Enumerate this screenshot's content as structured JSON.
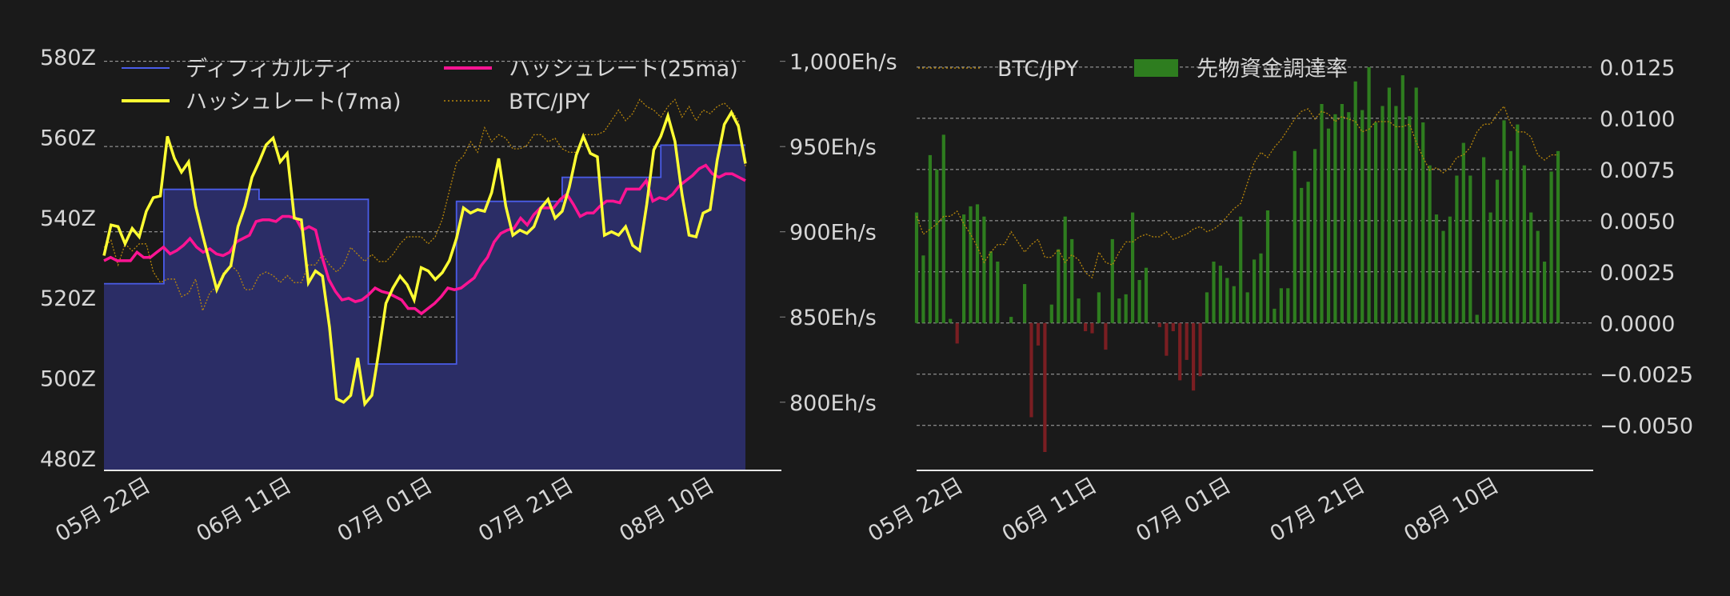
{
  "colors": {
    "background": "#1a1a1a",
    "text": "#d6d6d6",
    "grid": "#cfcfcf",
    "difficulty_line": "#4a5ce8",
    "difficulty_fill": "#2b2d66",
    "hash7": "#ffff33",
    "hash25": "#ff1493",
    "btc": "#b8860b",
    "funding_pos": "#2e7d1f",
    "funding_neg": "#7a1e22"
  },
  "chart_data": [
    {
      "type": "line",
      "x_tick_labels": [
        "05月 22日",
        "06月 11日",
        "07月 01日",
        "07月 21日",
        "08月 10日"
      ],
      "x_tick_days": [
        0,
        20,
        40,
        60,
        80
      ],
      "x_range_days": [
        0,
        91
      ],
      "y_left_ticks": [
        "480Z",
        "500Z",
        "520Z",
        "540Z",
        "560Z",
        "580Z"
      ],
      "y_left_tick_values": [
        480,
        500,
        520,
        540,
        560,
        580
      ],
      "y_left_range": [
        477,
        581
      ],
      "y_right_ticks": [
        "800Eh/s",
        "850Eh/s",
        "900Eh/s",
        "950Eh/s",
        "1,000Eh/s"
      ],
      "y_right_tick_values": [
        800,
        850,
        900,
        950,
        1000
      ],
      "y_right_range": [
        760,
        1005
      ],
      "btc_range": [
        0,
        1
      ],
      "legend": [
        "ディフィカルティ",
        "ハッシュレート(25ma)",
        "ハッシュレート(7ma)",
        "BTC/JPY"
      ],
      "difficulty_steps": [
        {
          "from": 0,
          "to": 8.5,
          "value": 523.5
        },
        {
          "from": 8.5,
          "to": 22,
          "value": 547
        },
        {
          "from": 22,
          "to": 37.5,
          "value": 544.5
        },
        {
          "from": 37.5,
          "to": 50,
          "value": 503.5
        },
        {
          "from": 50,
          "to": 65,
          "value": 544
        },
        {
          "from": 65,
          "to": 79,
          "value": 550
        },
        {
          "from": 79,
          "to": 91,
          "value": 558
        }
      ],
      "hashrate_7ma": [
        886,
        904,
        903,
        893,
        902,
        897,
        912,
        920,
        921,
        956,
        943,
        935,
        941,
        915,
        898,
        882,
        866,
        875,
        880,
        903,
        915,
        932,
        941,
        951,
        955,
        941,
        946,
        908,
        907,
        870,
        877,
        874,
        844,
        802,
        800,
        804,
        826,
        799,
        804,
        830,
        858,
        867,
        874,
        869,
        860,
        879,
        877,
        872,
        876,
        883,
        896,
        914,
        911,
        913,
        912,
        923,
        943,
        915,
        898,
        901,
        899,
        903,
        914,
        919,
        908,
        912,
        926,
        945,
        956,
        946,
        944,
        898,
        900,
        898,
        903,
        892,
        889,
        916,
        948,
        956,
        968,
        953,
        922,
        898,
        897,
        911,
        913,
        942,
        963,
        970,
        962,
        940
      ],
      "hashrate_25ma": [
        883,
        885,
        883,
        883,
        883,
        888,
        885,
        885,
        888,
        891,
        887,
        889,
        892,
        896,
        891,
        888,
        890,
        887,
        886,
        888,
        894,
        896,
        898,
        906,
        907,
        907,
        906,
        909,
        909,
        908,
        901,
        903,
        901,
        885,
        872,
        865,
        860,
        861,
        859,
        860,
        863,
        867,
        865,
        864,
        862,
        860,
        855,
        855,
        852,
        855,
        858,
        862,
        867,
        866,
        867,
        870,
        873,
        880,
        885,
        894,
        899,
        901,
        902,
        908,
        904,
        910,
        914,
        914,
        914,
        919,
        922,
        916,
        909,
        911,
        911,
        915,
        918,
        918,
        917,
        925,
        925,
        925,
        930,
        918,
        920,
        919,
        922,
        927,
        930,
        933,
        937,
        939,
        934,
        932,
        934,
        934,
        932,
        930
      ],
      "btc_jpy": [
        0.57,
        0.59,
        0.52,
        0.58,
        0.56,
        0.58,
        0.58,
        0.5,
        0.47,
        0.48,
        0.48,
        0.43,
        0.44,
        0.48,
        0.39,
        0.44,
        0.46,
        0.5,
        0.52,
        0.5,
        0.45,
        0.45,
        0.49,
        0.5,
        0.49,
        0.47,
        0.49,
        0.47,
        0.47,
        0.52,
        0.52,
        0.55,
        0.52,
        0.5,
        0.52,
        0.57,
        0.55,
        0.53,
        0.55,
        0.53,
        0.53,
        0.55,
        0.58,
        0.6,
        0.6,
        0.6,
        0.58,
        0.6,
        0.65,
        0.73,
        0.81,
        0.83,
        0.87,
        0.84,
        0.91,
        0.87,
        0.89,
        0.88,
        0.85,
        0.85,
        0.86,
        0.89,
        0.89,
        0.87,
        0.88,
        0.85,
        0.84,
        0.84,
        0.89,
        0.89,
        0.89,
        0.9,
        0.93,
        0.96,
        0.93,
        0.95,
        0.99,
        0.97,
        0.96,
        0.94,
        0.97,
        0.99,
        0.94,
        0.97,
        0.93,
        0.96,
        0.95,
        0.97,
        0.98,
        0.96,
        0.93,
        0.8
      ]
    },
    {
      "type": "bar",
      "x_tick_labels": [
        "05月 22日",
        "06月 11日",
        "07月 01日",
        "07月 21日",
        "08月 10日"
      ],
      "x_tick_days": [
        0,
        20,
        40,
        60,
        80
      ],
      "x_range_days": [
        0,
        96
      ],
      "y_ticks": [
        "0.0125",
        "0.0100",
        "0.0075",
        "0.0050",
        "0.0025",
        "0.0000",
        "−0.0025",
        "−0.0050"
      ],
      "y_tick_values": [
        0.0125,
        0.01,
        0.0075,
        0.005,
        0.0025,
        0.0,
        -0.0025,
        -0.005
      ],
      "y_range": [
        -0.0072,
        0.0132
      ],
      "btc_range": [
        0,
        1
      ],
      "legend": [
        "BTC/JPY",
        "先物資金調達率"
      ],
      "funding_rate": [
        0.0054,
        0.0033,
        0.0082,
        0.0075,
        0.0092,
        0.0002,
        -0.001,
        0.0053,
        0.0057,
        0.0058,
        0.0052,
        0.0035,
        0.003,
        0.0,
        0.0003,
        0.0,
        0.0019,
        -0.0046,
        -0.0011,
        -0.0063,
        0.0009,
        0.0036,
        0.0052,
        0.0041,
        0.0012,
        -0.0004,
        -0.0005,
        0.0015,
        -0.0013,
        0.0041,
        0.0012,
        0.0014,
        0.0054,
        0.0021,
        0.0027,
        0.0,
        -0.0002,
        -0.0016,
        -0.0004,
        -0.0028,
        -0.0018,
        -0.0033,
        -0.0026,
        0.0015,
        0.003,
        0.0028,
        0.0022,
        0.0018,
        0.0052,
        0.0015,
        0.0031,
        0.0034,
        0.0055,
        0.0007,
        0.0017,
        0.0017,
        0.0084,
        0.0066,
        0.0069,
        0.0085,
        0.0107,
        0.0095,
        0.0102,
        0.0107,
        0.0103,
        0.0118,
        0.0104,
        0.0125,
        0.0098,
        0.0106,
        0.0115,
        0.0106,
        0.0121,
        0.0101,
        0.0115,
        0.0098,
        0.0077,
        0.0053,
        0.0045,
        0.0052,
        0.0072,
        0.0088,
        0.0072,
        0.0004,
        0.0081,
        0.0054,
        0.007,
        0.0099,
        0.0084,
        0.0097,
        0.0077,
        0.0054,
        0.0045,
        0.003,
        0.0074,
        0.0084
      ],
      "btc_jpy": [
        0.53,
        0.46,
        0.48,
        0.5,
        0.53,
        0.53,
        0.55,
        0.5,
        0.46,
        0.41,
        0.35,
        0.39,
        0.42,
        0.42,
        0.47,
        0.43,
        0.39,
        0.42,
        0.44,
        0.37,
        0.37,
        0.4,
        0.35,
        0.38,
        0.36,
        0.31,
        0.29,
        0.39,
        0.35,
        0.34,
        0.39,
        0.43,
        0.43,
        0.45,
        0.46,
        0.45,
        0.45,
        0.47,
        0.44,
        0.45,
        0.46,
        0.48,
        0.49,
        0.47,
        0.48,
        0.5,
        0.53,
        0.56,
        0.58,
        0.66,
        0.74,
        0.78,
        0.76,
        0.8,
        0.83,
        0.87,
        0.91,
        0.94,
        0.95,
        0.91,
        0.94,
        0.93,
        0.9,
        0.92,
        0.91,
        0.9,
        0.86,
        0.87,
        0.9,
        0.9,
        0.9,
        0.88,
        0.88,
        0.89,
        0.82,
        0.76,
        0.71,
        0.72,
        0.7,
        0.72,
        0.76,
        0.77,
        0.8,
        0.86,
        0.89,
        0.89,
        0.93,
        0.96,
        0.89,
        0.86,
        0.86,
        0.84,
        0.77,
        0.75,
        0.77,
        0.77
      ]
    }
  ]
}
